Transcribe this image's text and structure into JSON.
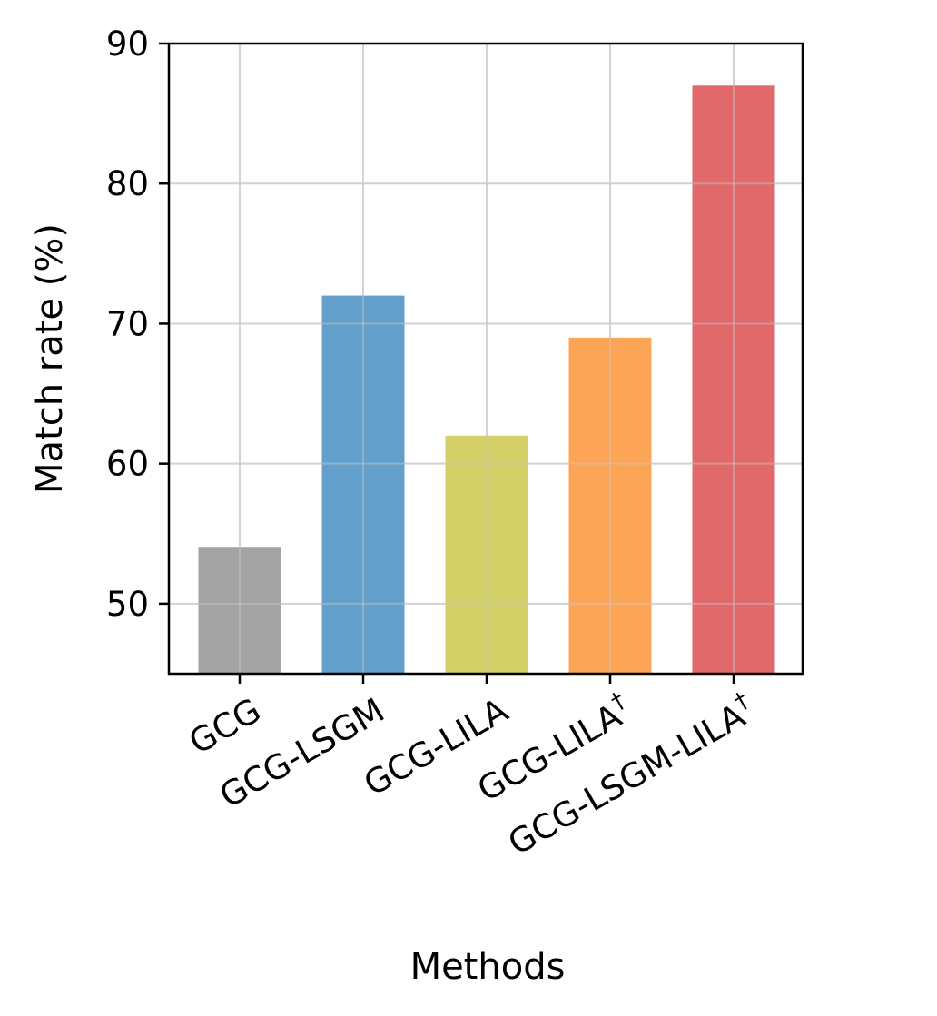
{
  "chart_data": {
    "type": "bar",
    "title": "",
    "xlabel": "Methods",
    "ylabel": "Match rate (%)",
    "categories": [
      "GCG",
      "GCG-LSGM",
      "GCG-LILA",
      "GCG-LILA",
      "GCG-LSGM-LILA"
    ],
    "category_superscripts": [
      "",
      "",
      "",
      "†",
      "†"
    ],
    "values": [
      54,
      72,
      62,
      69,
      87
    ],
    "colors": [
      "#a3a3a3",
      "#62a0cb",
      "#d2d067",
      "#fda557",
      "#e2696a"
    ],
    "ylim": [
      45,
      90
    ],
    "yticks": [
      50,
      60,
      70,
      80,
      90
    ],
    "grid": true,
    "legend": "none"
  }
}
